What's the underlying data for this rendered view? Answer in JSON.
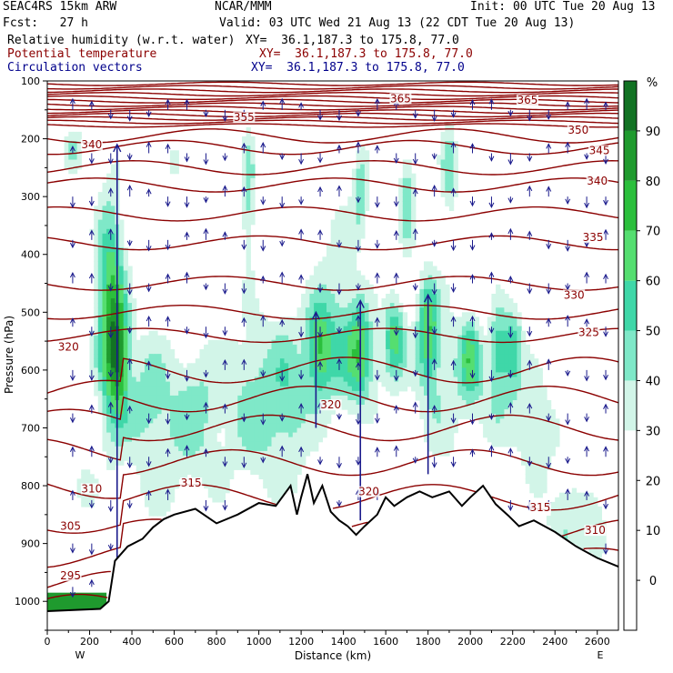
{
  "header": {
    "model": "SEAC4RS 15km ARW",
    "org": "NCAR/MMM",
    "init": "Init: 00 UTC Tue 20 Aug 13",
    "fcst": "Fcst:   27 h",
    "valid": "Valid: 03 UTC Wed 21 Aug 13 (22 CDT Tue 20 Aug 13)",
    "fields": [
      {
        "name": "Relative humidity (w.r.t. water)",
        "xy": "XY=  36.1,187.3 to 175.8, 77.0",
        "color": "#000000"
      },
      {
        "name": "Potential temperature",
        "xy": "XY=  36.1,187.3 to 175.8, 77.0",
        "color": "#8b0000"
      },
      {
        "name": "Circulation vectors",
        "xy": "XY=  36.1,187.3 to 175.8, 77.0",
        "color": "#00008b"
      }
    ]
  },
  "chart_data": {
    "type": "heatmap",
    "xlabel": "Distance (km)",
    "ylabel": "Pressure (hPa)",
    "xlim": [
      0,
      2700
    ],
    "ylim": [
      1050,
      100
    ],
    "x_ticks": [
      0,
      200,
      400,
      600,
      800,
      1000,
      1200,
      1400,
      1600,
      1800,
      2000,
      2200,
      2400,
      2600
    ],
    "y_ticks": [
      100,
      200,
      300,
      400,
      500,
      600,
      700,
      800,
      900,
      1000
    ],
    "x_end_labels": {
      "left": "W",
      "right": "E"
    },
    "colorbar": {
      "unit": "%",
      "ticks": [
        0,
        10,
        20,
        30,
        40,
        50,
        60,
        70,
        80,
        90
      ],
      "bands": [
        {
          "from": 30,
          "to": 40,
          "color": "#d2f5e8"
        },
        {
          "from": 40,
          "to": 50,
          "color": "#7fe8c8"
        },
        {
          "from": 50,
          "to": 60,
          "color": "#3fd7a8"
        },
        {
          "from": 60,
          "to": 70,
          "color": "#55de70"
        },
        {
          "from": 70,
          "to": 80,
          "color": "#2bbf3c"
        },
        {
          "from": 80,
          "to": 90,
          "color": "#1f9a2e"
        },
        {
          "from": 90,
          "to": 100,
          "color": "#127223"
        }
      ]
    },
    "theta_contour_labels": [
      {
        "label": "365",
        "x": 1670,
        "p": 135
      },
      {
        "label": "365",
        "x": 2270,
        "p": 138
      },
      {
        "label": "355",
        "x": 930,
        "p": 168
      },
      {
        "label": "350",
        "x": 2510,
        "p": 190
      },
      {
        "label": "345",
        "x": 2610,
        "p": 225
      },
      {
        "label": "340",
        "x": 210,
        "p": 215
      },
      {
        "label": "340",
        "x": 2600,
        "p": 278
      },
      {
        "label": "335",
        "x": 2580,
        "p": 375
      },
      {
        "label": "330",
        "x": 2490,
        "p": 475
      },
      {
        "label": "325",
        "x": 2560,
        "p": 540
      },
      {
        "label": "320",
        "x": 100,
        "p": 565
      },
      {
        "label": "320",
        "x": 1340,
        "p": 665
      },
      {
        "label": "320",
        "x": 1520,
        "p": 815
      },
      {
        "label": "315",
        "x": 680,
        "p": 800
      },
      {
        "label": "315",
        "x": 2330,
        "p": 842
      },
      {
        "label": "310",
        "x": 210,
        "p": 810
      },
      {
        "label": "310",
        "x": 2590,
        "p": 882
      },
      {
        "label": "305",
        "x": 110,
        "p": 875
      },
      {
        "label": "295",
        "x": 110,
        "p": 960
      }
    ],
    "terrain_p": [
      [
        0,
        1017
      ],
      [
        250,
        1013
      ],
      [
        290,
        1000
      ],
      [
        320,
        930
      ],
      [
        380,
        905
      ],
      [
        450,
        892
      ],
      [
        500,
        872
      ],
      [
        550,
        858
      ],
      [
        600,
        850
      ],
      [
        700,
        840
      ],
      [
        800,
        865
      ],
      [
        900,
        850
      ],
      [
        1000,
        830
      ],
      [
        1080,
        835
      ],
      [
        1150,
        800
      ],
      [
        1180,
        850
      ],
      [
        1200,
        820
      ],
      [
        1230,
        780
      ],
      [
        1260,
        830
      ],
      [
        1300,
        800
      ],
      [
        1340,
        845
      ],
      [
        1380,
        860
      ],
      [
        1420,
        870
      ],
      [
        1460,
        885
      ],
      [
        1500,
        870
      ],
      [
        1560,
        850
      ],
      [
        1600,
        820
      ],
      [
        1640,
        835
      ],
      [
        1700,
        820
      ],
      [
        1760,
        810
      ],
      [
        1820,
        820
      ],
      [
        1900,
        810
      ],
      [
        1960,
        835
      ],
      [
        2000,
        820
      ],
      [
        2060,
        800
      ],
      [
        2120,
        832
      ],
      [
        2180,
        852
      ],
      [
        2230,
        870
      ],
      [
        2300,
        860
      ],
      [
        2400,
        880
      ],
      [
        2500,
        905
      ],
      [
        2600,
        925
      ],
      [
        2700,
        940
      ]
    ]
  }
}
